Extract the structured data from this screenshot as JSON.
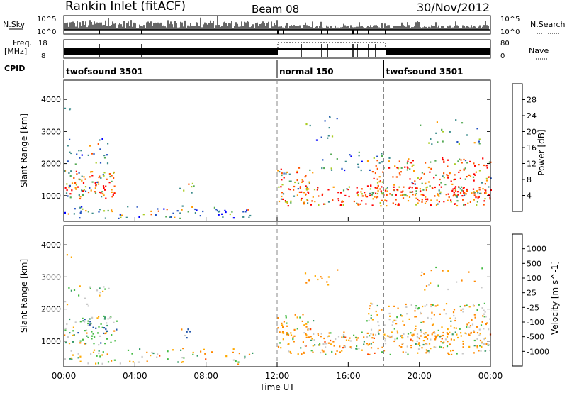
{
  "header": {
    "title": "Rankin Inlet (fitACF)",
    "beam": "Beam 08",
    "date": "30/Nov/2012"
  },
  "strip_labels": {
    "nsky": "N.Sky",
    "nsky_max": "10^5",
    "nsky_min": "10^0",
    "nsearch": "N.Search",
    "nsearch_max": "10^5",
    "nsearch_min": "10^0",
    "freq_top": "Freq.",
    "freq_unit": "[MHz]",
    "freq_max": "18",
    "freq_min": "8",
    "nave": "Nave",
    "nave_max": "80",
    "nave_min": "0",
    "cpid": "CPID"
  },
  "cpid_segments": [
    {
      "label": "twofsound 3501",
      "start_hour": 0
    },
    {
      "label": "normal 150",
      "start_hour": 12
    },
    {
      "label": "twofsound 3501",
      "start_hour": 18
    }
  ],
  "colors": {
    "power": [
      "#0000ff",
      "#2050c0",
      "#3a8a8a",
      "#55aa55",
      "#aacc22",
      "#ff9900",
      "#ff5500",
      "#ff0000"
    ],
    "velocity": [
      "#ff0000",
      "#ff4400",
      "#ff8800",
      "#ffaa00",
      "#c8c8c8",
      "#44bb44",
      "#339966",
      "#2255aa",
      "#1122dd"
    ]
  },
  "chart_data": [
    {
      "type": "heatmap",
      "ylabel": "Slant Range [km]",
      "y_ticks": [
        "1000",
        "2000",
        "3000",
        "4000"
      ],
      "colorbar_label": "Power [dB]",
      "colorbar_ticks": [
        "4",
        "8",
        "12",
        "16",
        "20",
        "24",
        "28"
      ]
    },
    {
      "type": "heatmap",
      "ylabel": "Slant Range [km]",
      "y_ticks": [
        "1000",
        "2000",
        "3000",
        "4000"
      ],
      "colorbar_label": "Velocity [m s^-1]",
      "colorbar_ticks": [
        "1000",
        "500",
        "100",
        "25",
        "-25",
        "-100",
        "-500",
        "-1000"
      ]
    }
  ],
  "x_axis": {
    "ticks": [
      "00:00",
      "04:00",
      "08:00",
      "12:00",
      "16:00",
      "20:00",
      "00:00"
    ],
    "label": "Time UT"
  }
}
